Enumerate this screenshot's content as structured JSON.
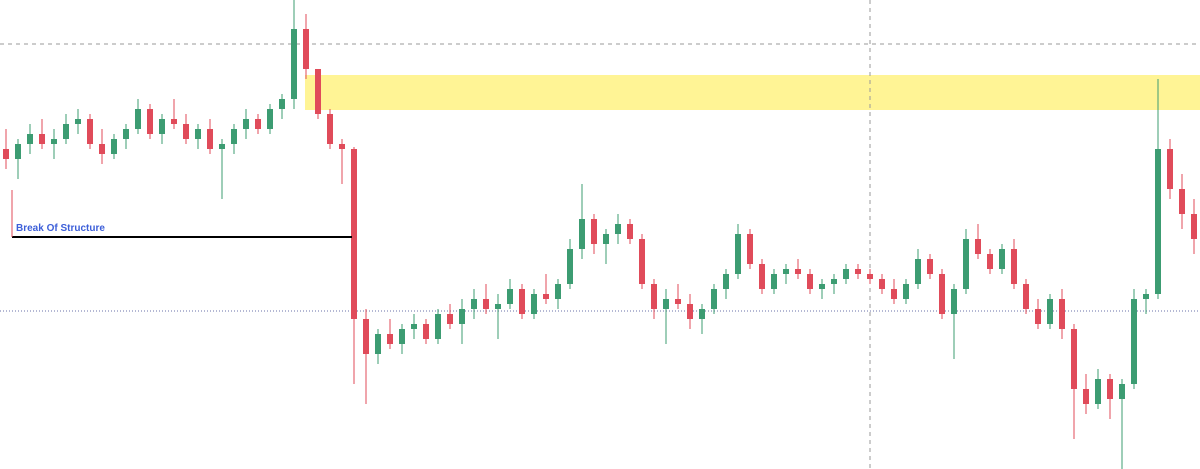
{
  "chart_data": {
    "type": "candlestick",
    "annotation": "Break Of Structure",
    "ylim": [
      0,
      469
    ],
    "up_color": "#3c9c72",
    "down_color": "#e04b5a",
    "open": [
      320,
      310,
      325,
      335,
      325,
      330,
      345,
      350,
      325,
      315,
      330,
      340,
      360,
      335,
      350,
      345,
      330,
      340,
      320,
      325,
      340,
      350,
      340,
      360,
      370,
      440,
      400,
      355,
      325,
      320,
      150,
      115,
      135,
      125,
      140,
      145,
      130,
      155,
      145,
      160,
      170,
      160,
      165,
      180,
      155,
      175,
      170,
      185,
      220,
      250,
      225,
      235,
      245,
      230,
      185,
      160,
      170,
      165,
      150,
      160,
      180,
      195,
      235,
      205,
      180,
      195,
      200,
      195,
      180,
      185,
      190,
      200,
      195,
      190,
      180,
      170,
      185,
      210,
      195,
      155,
      180,
      230,
      215,
      200,
      220,
      185,
      160,
      145,
      170,
      140,
      80,
      65,
      90,
      70,
      85,
      170,
      175,
      320,
      280,
      255
    ],
    "high": [
      340,
      330,
      345,
      350,
      340,
      355,
      360,
      355,
      340,
      335,
      345,
      370,
      365,
      355,
      370,
      355,
      345,
      350,
      330,
      345,
      360,
      355,
      365,
      375,
      469,
      455,
      400,
      360,
      330,
      322,
      160,
      140,
      150,
      145,
      155,
      150,
      160,
      165,
      170,
      180,
      185,
      175,
      190,
      185,
      180,
      195,
      190,
      230,
      285,
      255,
      240,
      255,
      250,
      235,
      190,
      180,
      185,
      175,
      165,
      185,
      200,
      245,
      240,
      210,
      200,
      205,
      210,
      200,
      190,
      195,
      205,
      205,
      200,
      195,
      190,
      190,
      220,
      215,
      200,
      185,
      240,
      245,
      220,
      225,
      230,
      190,
      170,
      175,
      180,
      145,
      95,
      100,
      95,
      90,
      180,
      180,
      390,
      330,
      295,
      270
    ],
    "low": [
      300,
      290,
      315,
      320,
      310,
      325,
      335,
      320,
      305,
      310,
      320,
      335,
      330,
      325,
      340,
      325,
      320,
      315,
      270,
      315,
      330,
      335,
      335,
      350,
      360,
      390,
      350,
      320,
      285,
      85,
      65,
      105,
      120,
      115,
      130,
      125,
      125,
      140,
      125,
      150,
      155,
      130,
      160,
      150,
      150,
      165,
      160,
      180,
      210,
      215,
      205,
      225,
      225,
      180,
      150,
      125,
      160,
      140,
      135,
      155,
      170,
      190,
      200,
      175,
      175,
      185,
      190,
      175,
      170,
      175,
      185,
      190,
      185,
      175,
      165,
      165,
      180,
      190,
      150,
      110,
      175,
      210,
      195,
      195,
      180,
      155,
      140,
      140,
      130,
      30,
      55,
      60,
      50,
      0,
      80,
      155,
      170,
      270,
      240,
      215
    ],
    "close": [
      310,
      325,
      335,
      325,
      330,
      345,
      350,
      325,
      315,
      330,
      340,
      360,
      335,
      350,
      345,
      330,
      340,
      320,
      325,
      340,
      350,
      340,
      360,
      370,
      440,
      400,
      355,
      325,
      320,
      150,
      115,
      135,
      125,
      140,
      145,
      130,
      155,
      145,
      160,
      170,
      160,
      165,
      180,
      155,
      175,
      170,
      185,
      220,
      250,
      225,
      235,
      245,
      230,
      185,
      160,
      170,
      165,
      150,
      160,
      180,
      195,
      235,
      205,
      180,
      195,
      200,
      195,
      180,
      185,
      190,
      200,
      195,
      190,
      180,
      170,
      185,
      210,
      195,
      155,
      180,
      230,
      215,
      200,
      220,
      185,
      160,
      145,
      170,
      140,
      80,
      65,
      90,
      70,
      85,
      170,
      175,
      320,
      280,
      255,
      230
    ]
  }
}
